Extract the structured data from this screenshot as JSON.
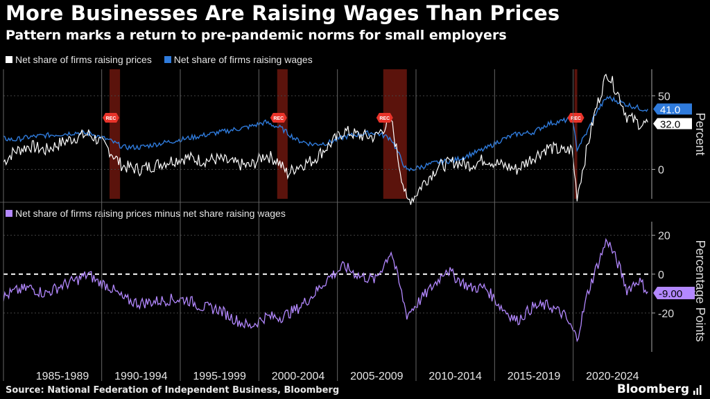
{
  "header": {
    "title": "More Businesses Are Raising Wages Than Prices",
    "subtitle": "Pattern marks a return to pre-pandemic norms for small employers"
  },
  "footer": {
    "source": "Source: National Federation of Independent Business, Bloomberg",
    "brand": "Bloomberg",
    "brand_icon": "bloomberg-terminal-icon"
  },
  "recession_label": "REC",
  "chart_data": [
    {
      "type": "line",
      "title": "",
      "ylabel": "Percent",
      "x_range": [
        "1983-10",
        "2025-01"
      ],
      "ylim": [
        -20,
        68
      ],
      "yticks": [
        0,
        50
      ],
      "grid": true,
      "legend_position": "top-left",
      "end_labels": [
        "41.0",
        "32.0"
      ],
      "recessions": [
        [
          "1990-07",
          "1991-03"
        ],
        [
          "2001-03",
          "2001-11"
        ],
        [
          "2007-12",
          "2009-06"
        ],
        [
          "2020-02",
          "2020-04"
        ]
      ],
      "series": [
        {
          "name": "Net share of firms raising prices",
          "color": "#ffffff",
          "points": [
            [
              "1983-10",
              5
            ],
            [
              "1984-06",
              12
            ],
            [
              "1985-06",
              16
            ],
            [
              "1986-06",
              13
            ],
            [
              "1987-06",
              18
            ],
            [
              "1988-06",
              22
            ],
            [
              "1989-03",
              24
            ],
            [
              "1989-10",
              20
            ],
            [
              "1990-06",
              14
            ],
            [
              "1991-03",
              4
            ],
            [
              "1991-06",
              2
            ],
            [
              "1992-06",
              0
            ],
            [
              "1993-06",
              3
            ],
            [
              "1994-06",
              6
            ],
            [
              "1995-06",
              8
            ],
            [
              "1996-06",
              6
            ],
            [
              "1997-06",
              7
            ],
            [
              "1998-06",
              4
            ],
            [
              "1999-06",
              2
            ],
            [
              "2000-06",
              10
            ],
            [
              "2001-03",
              6
            ],
            [
              "2001-11",
              -3
            ],
            [
              "2002-06",
              2
            ],
            [
              "2003-06",
              6
            ],
            [
              "2004-06",
              16
            ],
            [
              "2005-06",
              26
            ],
            [
              "2006-06",
              23
            ],
            [
              "2007-06",
              22
            ],
            [
              "2008-06",
              34
            ],
            [
              "2008-12",
              4
            ],
            [
              "2009-06",
              -22
            ],
            [
              "2009-12",
              -18
            ],
            [
              "2010-06",
              -10
            ],
            [
              "2011-06",
              2
            ],
            [
              "2012-06",
              5
            ],
            [
              "2013-06",
              3
            ],
            [
              "2014-06",
              7
            ],
            [
              "2015-06",
              3
            ],
            [
              "2016-06",
              0
            ],
            [
              "2017-06",
              8
            ],
            [
              "2018-06",
              15
            ],
            [
              "2019-06",
              12
            ],
            [
              "2019-12",
              14
            ],
            [
              "2020-04",
              -18
            ],
            [
              "2020-12",
              16
            ],
            [
              "2021-06",
              40
            ],
            [
              "2022-03",
              66
            ],
            [
              "2022-12",
              50
            ],
            [
              "2023-06",
              36
            ],
            [
              "2024-06",
              30
            ],
            [
              "2024-10",
              32
            ]
          ]
        },
        {
          "name": "Net share of firms raising wages",
          "color": "#2f7bdc",
          "points": [
            [
              "1983-10",
              21
            ],
            [
              "1984-06",
              20
            ],
            [
              "1985-06",
              22
            ],
            [
              "1986-06",
              23
            ],
            [
              "1987-06",
              24
            ],
            [
              "1988-06",
              25
            ],
            [
              "1989-06",
              24
            ],
            [
              "1990-06",
              20
            ],
            [
              "1991-06",
              15
            ],
            [
              "1992-06",
              15
            ],
            [
              "1993-06",
              17
            ],
            [
              "1994-06",
              19
            ],
            [
              "1995-06",
              21
            ],
            [
              "1996-06",
              23
            ],
            [
              "1997-06",
              25
            ],
            [
              "1998-06",
              27
            ],
            [
              "1999-06",
              29
            ],
            [
              "2000-06",
              32
            ],
            [
              "2001-06",
              28
            ],
            [
              "2002-06",
              20
            ],
            [
              "2003-06",
              17
            ],
            [
              "2004-06",
              18
            ],
            [
              "2005-06",
              22
            ],
            [
              "2006-06",
              24
            ],
            [
              "2007-06",
              25
            ],
            [
              "2008-06",
              21
            ],
            [
              "2009-06",
              -1
            ],
            [
              "2010-06",
              2
            ],
            [
              "2011-06",
              5
            ],
            [
              "2012-06",
              6
            ],
            [
              "2013-06",
              10
            ],
            [
              "2014-06",
              14
            ],
            [
              "2015-06",
              20
            ],
            [
              "2016-06",
              24
            ],
            [
              "2017-06",
              25
            ],
            [
              "2018-06",
              31
            ],
            [
              "2019-06",
              33
            ],
            [
              "2019-12",
              35
            ],
            [
              "2020-04",
              14
            ],
            [
              "2020-12",
              26
            ],
            [
              "2021-06",
              38
            ],
            [
              "2022-03",
              49
            ],
            [
              "2022-12",
              46
            ],
            [
              "2023-06",
              44
            ],
            [
              "2024-06",
              41
            ],
            [
              "2024-10",
              41
            ]
          ]
        }
      ]
    },
    {
      "type": "line",
      "title": "",
      "ylabel": "Percentage Points",
      "x_range": [
        "1983-10",
        "2025-01"
      ],
      "ylim": [
        -40,
        27
      ],
      "yticks": [
        -20,
        0,
        20
      ],
      "reference_line": 0,
      "legend_position": "top-left",
      "end_label": "-9.00",
      "xtick_labels": [
        "1985-1989",
        "1990-1994",
        "1995-1999",
        "2000-2004",
        "2005-2009",
        "2010-2014",
        "2015-2019",
        "2020-2024"
      ],
      "series": [
        {
          "name": "Net share of firms raising prices minus net share raising wages",
          "color": "#b388ff",
          "points": [
            [
              "1983-10",
              -12
            ],
            [
              "1984-06",
              -9
            ],
            [
              "1985-06",
              -7
            ],
            [
              "1986-06",
              -10
            ],
            [
              "1987-06",
              -6
            ],
            [
              "1988-06",
              -3
            ],
            [
              "1989-03",
              0
            ],
            [
              "1989-10",
              -4
            ],
            [
              "1990-06",
              -6
            ],
            [
              "1991-06",
              -13
            ],
            [
              "1992-06",
              -15
            ],
            [
              "1993-06",
              -14
            ],
            [
              "1994-06",
              -13
            ],
            [
              "1995-06",
              -13
            ],
            [
              "1996-06",
              -17
            ],
            [
              "1997-06",
              -18
            ],
            [
              "1998-06",
              -23
            ],
            [
              "1999-06",
              -27
            ],
            [
              "2000-06",
              -22
            ],
            [
              "2001-06",
              -22
            ],
            [
              "2002-06",
              -18
            ],
            [
              "2003-06",
              -11
            ],
            [
              "2004-06",
              -2
            ],
            [
              "2005-06",
              4
            ],
            [
              "2006-06",
              -1
            ],
            [
              "2007-06",
              -3
            ],
            [
              "2008-06",
              12
            ],
            [
              "2009-06",
              -21
            ],
            [
              "2010-06",
              -12
            ],
            [
              "2011-06",
              -3
            ],
            [
              "2011-12",
              3
            ],
            [
              "2012-06",
              -1
            ],
            [
              "2013-06",
              -7
            ],
            [
              "2014-06",
              -7
            ],
            [
              "2015-06",
              -17
            ],
            [
              "2016-06",
              -24
            ],
            [
              "2017-06",
              -17
            ],
            [
              "2018-06",
              -16
            ],
            [
              "2019-06",
              -21
            ],
            [
              "2020-04",
              -33
            ],
            [
              "2020-12",
              -10
            ],
            [
              "2021-06",
              2
            ],
            [
              "2022-03",
              18
            ],
            [
              "2022-12",
              4
            ],
            [
              "2023-06",
              -8
            ],
            [
              "2024-03",
              -3
            ],
            [
              "2024-10",
              -9
            ]
          ]
        }
      ]
    }
  ]
}
